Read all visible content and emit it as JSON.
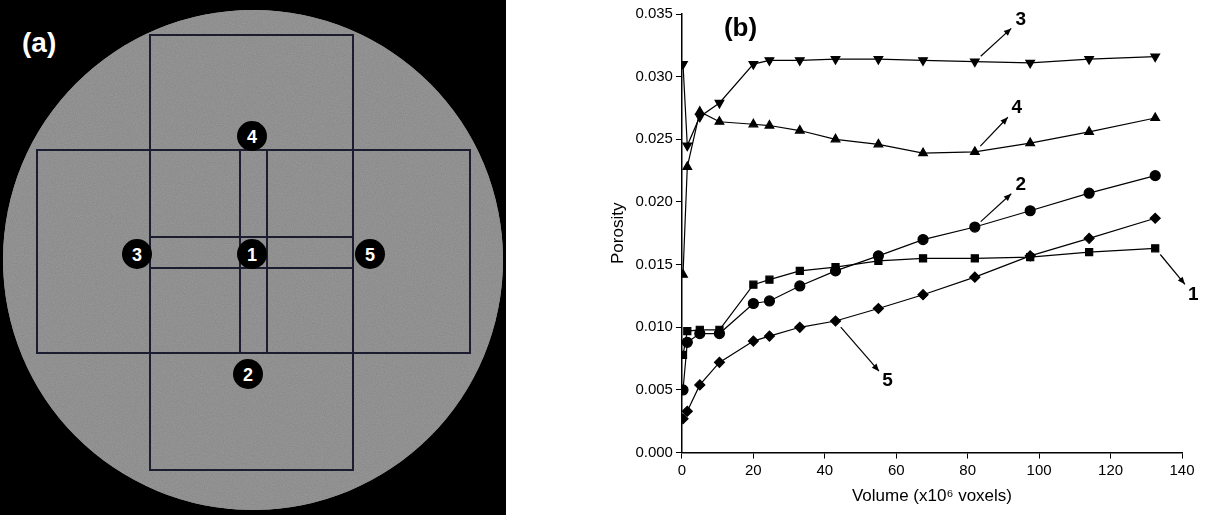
{
  "diagram": {
    "letter": "(a)",
    "regions": [
      "1",
      "2",
      "3",
      "4",
      "5"
    ]
  },
  "chart_data": {
    "type": "line",
    "title": "(b)",
    "x_label": "Volume (x10⁶ voxels)",
    "y_label": "Porosity",
    "x": [
      0.3,
      1.5,
      5,
      10.5,
      20,
      24.5,
      33,
      43,
      55,
      67.5,
      82,
      97.5,
      114,
      132.5
    ],
    "xlim": [
      0,
      140
    ],
    "xticks": [
      0,
      20,
      40,
      60,
      80,
      100,
      120,
      140
    ],
    "ylim": [
      0,
      0.035
    ],
    "yticks": [
      {
        "value": 0,
        "label": "0.000"
      },
      {
        "value": 0.005,
        "label": "0.005"
      },
      {
        "value": 0.01,
        "label": "0.010"
      },
      {
        "value": 0.015,
        "label": "0.015"
      },
      {
        "value": 0.02,
        "label": "0.020"
      },
      {
        "value": 0.025,
        "label": "0.025"
      },
      {
        "value": 0.03,
        "label": "0.030"
      },
      {
        "value": 0.035,
        "label": "0.035"
      }
    ],
    "grid": false,
    "series": [
      {
        "name": "1",
        "color": "#000000",
        "marker": "square",
        "values": [
          0.0078,
          0.0097,
          0.0098,
          0.0098,
          0.0134,
          0.0138,
          0.0145,
          0.0148,
          0.0153,
          0.0155,
          0.0155,
          0.0156,
          0.016,
          0.0163
        ]
      },
      {
        "name": "2",
        "color": "#000000",
        "marker": "circle",
        "values": [
          0.005,
          0.0088,
          0.0095,
          0.0095,
          0.0119,
          0.0121,
          0.0133,
          0.0145,
          0.0157,
          0.017,
          0.018,
          0.0193,
          0.0207,
          0.0221
        ]
      },
      {
        "name": "3",
        "color": "#000000",
        "marker": "triangle_down",
        "values": [
          0.031,
          0.0245,
          0.0268,
          0.0279,
          0.031,
          0.0313,
          0.0313,
          0.0314,
          0.0314,
          0.0313,
          0.0312,
          0.0311,
          0.0314,
          0.0316
        ]
      },
      {
        "name": "4",
        "color": "#000000",
        "marker": "triangle_up",
        "values": [
          0.0142,
          0.0228,
          0.0272,
          0.0264,
          0.0262,
          0.0261,
          0.0257,
          0.025,
          0.0246,
          0.0239,
          0.024,
          0.0247,
          0.0256,
          0.0267
        ]
      },
      {
        "name": "5",
        "color": "#000000",
        "marker": "diamond",
        "values": [
          0.0027,
          0.0033,
          0.0054,
          0.0072,
          0.0089,
          0.0093,
          0.01,
          0.0105,
          0.0115,
          0.0126,
          0.014,
          0.0157,
          0.0171,
          0.0187
        ]
      }
    ]
  }
}
